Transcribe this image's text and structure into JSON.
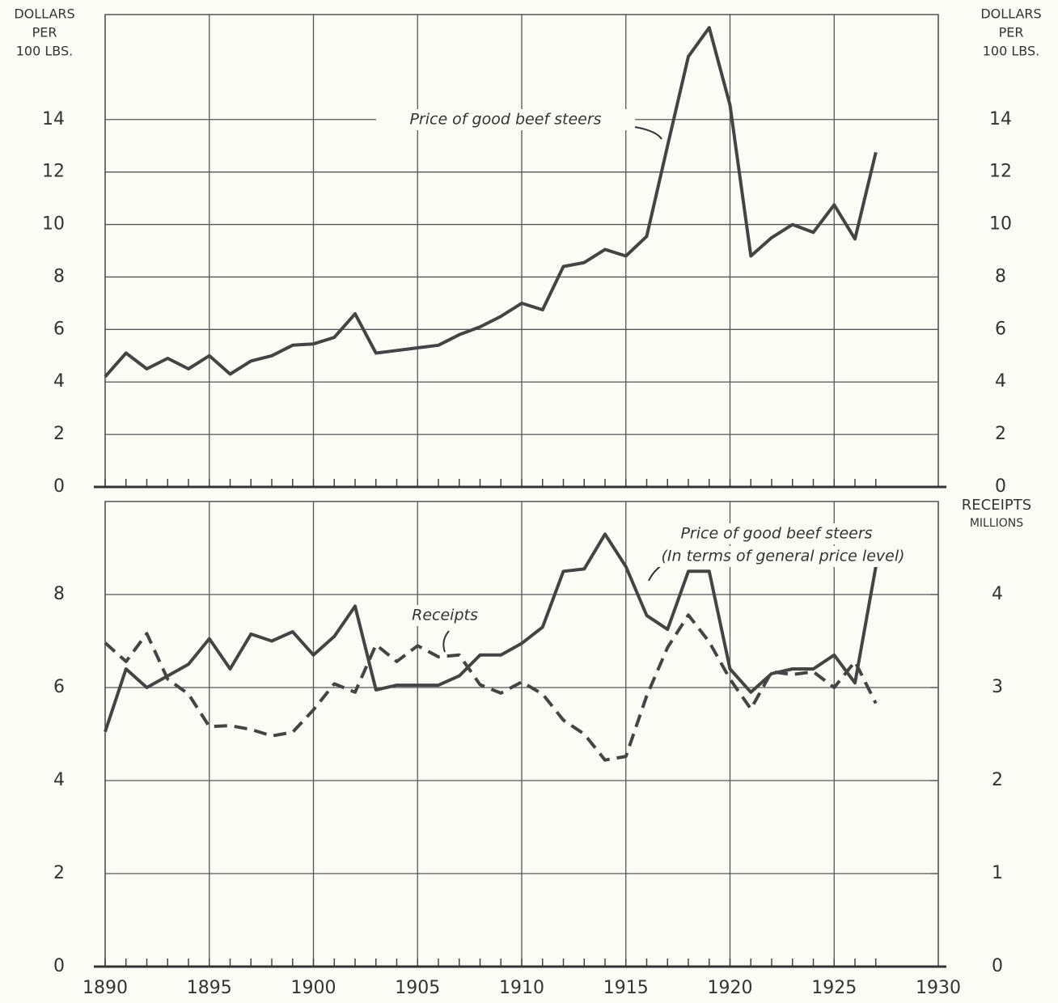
{
  "chart_data": [
    {
      "type": "line",
      "y_label": [
        "DOLLARS",
        "PER",
        "100 LBS."
      ],
      "annotations": [],
      "x": [
        1890,
        1891,
        1892,
        1893,
        1894,
        1895,
        1896,
        1897,
        1898,
        1899,
        1900,
        1901,
        1902,
        1903,
        1904,
        1905,
        1906,
        1907,
        1908,
        1909,
        1910,
        1911,
        1912,
        1913,
        1914,
        1915,
        1916,
        1917,
        1918,
        1919,
        1920,
        1921,
        1922,
        1923,
        1924,
        1925,
        1926,
        1927
      ],
      "xlim": [
        1890,
        1930
      ],
      "ylim": [
        0,
        18
      ],
      "yticks": [
        0,
        2,
        4,
        6,
        8,
        10,
        12,
        14
      ],
      "grid": true,
      "series": [
        {
          "name": "Price of good beef steers",
          "color": "#444444",
          "dash": false,
          "values": [
            4.2,
            5.1,
            4.5,
            4.9,
            4.5,
            5.0,
            4.3,
            4.8,
            5.0,
            5.4,
            5.45,
            5.7,
            6.6,
            5.1,
            5.2,
            5.3,
            5.4,
            5.8,
            6.1,
            6.5,
            7.0,
            6.75,
            8.4,
            8.55,
            9.05,
            8.8,
            9.55,
            13.0,
            16.4,
            17.5,
            14.55,
            8.8,
            9.5,
            10.0,
            9.7,
            10.75,
            9.45,
            12.75
          ]
        }
      ]
    },
    {
      "type": "line",
      "y2_label": [
        "RECEIPTS",
        "MILLIONS"
      ],
      "annotations": [
        "(In terms of general price level)"
      ],
      "x": [
        1890,
        1891,
        1892,
        1893,
        1894,
        1895,
        1896,
        1897,
        1898,
        1899,
        1900,
        1901,
        1902,
        1903,
        1904,
        1905,
        1906,
        1907,
        1908,
        1909,
        1910,
        1911,
        1912,
        1913,
        1914,
        1915,
        1916,
        1917,
        1918,
        1919,
        1920,
        1921,
        1922,
        1923,
        1924,
        1925,
        1926,
        1927
      ],
      "xlim": [
        1890,
        1930
      ],
      "xticks": [
        1890,
        1895,
        1900,
        1905,
        1910,
        1915,
        1920,
        1925,
        1930
      ],
      "ylim": [
        0,
        10
      ],
      "yticks": [
        0,
        2,
        4,
        6,
        8
      ],
      "y2lim": [
        0,
        5
      ],
      "y2ticks": [
        0,
        1,
        2,
        3,
        4
      ],
      "grid": true,
      "series": [
        {
          "name": "Price of good beef steers",
          "color": "#444444",
          "dash": false,
          "values": [
            5.05,
            6.4,
            6.0,
            6.25,
            6.5,
            7.05,
            6.4,
            7.15,
            7.0,
            7.2,
            6.7,
            7.1,
            7.75,
            5.95,
            6.05,
            6.05,
            6.05,
            6.25,
            6.7,
            6.7,
            6.95,
            7.3,
            8.5,
            8.55,
            9.3,
            8.6,
            7.55,
            7.25,
            8.5,
            8.5,
            6.4,
            5.9,
            6.3,
            6.4,
            6.4,
            6.7,
            6.1,
            8.6
          ]
        },
        {
          "name": "Receipts",
          "color": "#444444",
          "dash": true,
          "axis": "y2",
          "values": [
            3.48,
            3.28,
            3.58,
            3.09,
            2.93,
            2.58,
            2.59,
            2.55,
            2.48,
            2.52,
            2.76,
            3.04,
            2.95,
            3.46,
            3.28,
            3.45,
            3.33,
            3.35,
            3.03,
            2.94,
            3.06,
            2.93,
            2.65,
            2.5,
            2.22,
            2.26,
            2.91,
            3.43,
            3.78,
            3.49,
            3.09,
            2.77,
            3.17,
            3.14,
            3.17,
            3.0,
            3.28,
            2.83
          ]
        }
      ]
    }
  ]
}
